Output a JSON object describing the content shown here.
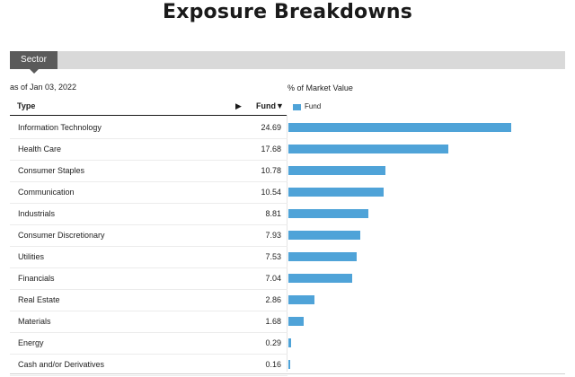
{
  "page": {
    "title": "Exposure Breakdowns"
  },
  "tabs": [
    {
      "label": "Sector",
      "active": true
    }
  ],
  "as_of": "as of Jan 03, 2022",
  "market_value_label": "% of Market Value",
  "table": {
    "col_type": "Type",
    "sort_arrow": "▶",
    "col_fund": "Fund▼"
  },
  "colors": {
    "bar": "#4fa3d8",
    "tab": "#5a5a5a",
    "tabbar": "#d9d9d9"
  },
  "chart_data": {
    "type": "bar",
    "orientation": "horizontal",
    "categories": [
      "Information Technology",
      "Health Care",
      "Consumer Staples",
      "Communication",
      "Industrials",
      "Consumer Discretionary",
      "Utilities",
      "Financials",
      "Real Estate",
      "Materials",
      "Energy",
      "Cash and/or Derivatives"
    ],
    "value_labels": [
      "24.69",
      "17.68",
      "10.78",
      "10.54",
      "8.81",
      "7.93",
      "7.53",
      "7.04",
      "2.86",
      "1.68",
      "0.29",
      "0.16"
    ],
    "series": [
      {
        "name": "Fund",
        "values": [
          24.69,
          17.68,
          10.78,
          10.54,
          8.81,
          7.93,
          7.53,
          7.04,
          2.86,
          1.68,
          0.29,
          0.16
        ]
      }
    ],
    "legend": "top-left",
    "grid": false
  }
}
